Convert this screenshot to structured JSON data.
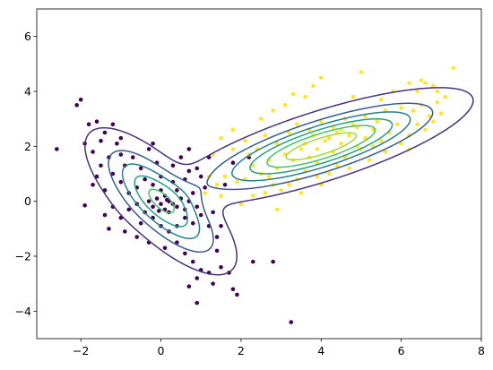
{
  "chart_data": {
    "type": "scatter",
    "title": "",
    "xlabel": "",
    "ylabel": "",
    "xlim": [
      -3.1,
      8
    ],
    "ylim": [
      -5,
      7
    ],
    "x_ticks": [
      -2,
      0,
      2,
      4,
      6,
      8
    ],
    "y_ticks": [
      -4,
      -2,
      0,
      2,
      4,
      6
    ],
    "x_tick_labels": [
      "−2",
      "0",
      "2",
      "4",
      "6",
      "8"
    ],
    "y_tick_labels": [
      "−4",
      "−2",
      "0",
      "2",
      "4",
      "6"
    ],
    "grid": false,
    "legend": "none",
    "colors": {
      "cluster_a": "#440154",
      "cluster_b": "#fde725",
      "contour_levels": [
        "#46327e",
        "#365c8d",
        "#277f8e",
        "#1fa187",
        "#4ac16d",
        "#a0da39"
      ]
    },
    "series": [
      {
        "color": "#440154",
        "points": [
          [
            -2.6,
            1.9
          ],
          [
            -2.1,
            3.5
          ],
          [
            -2.0,
            3.7
          ],
          [
            -1.8,
            2.8
          ],
          [
            -1.6,
            2.9
          ],
          [
            -1.4,
            2.5
          ],
          [
            -1.9,
            2.1
          ],
          [
            -1.7,
            1.8
          ],
          [
            -1.5,
            2.2
          ],
          [
            -1.2,
            2.8
          ],
          [
            -1.1,
            2.1
          ],
          [
            -1.0,
            2.3
          ],
          [
            -1.3,
            1.6
          ],
          [
            -1.5,
            1.3
          ],
          [
            -1.6,
            0.9
          ],
          [
            -1.7,
            0.6
          ],
          [
            -1.4,
            0.4
          ],
          [
            -1.2,
            1.0
          ],
          [
            -1.0,
            0.7
          ],
          [
            -0.9,
            1.3
          ],
          [
            -0.7,
            1.6
          ],
          [
            -0.5,
            1.2
          ],
          [
            -0.3,
            1.9
          ],
          [
            -0.2,
            2.1
          ],
          [
            -0.8,
            0.3
          ],
          [
            -0.6,
            0.5
          ],
          [
            -0.4,
            0.8
          ],
          [
            -0.2,
            0.6
          ],
          [
            0.0,
            0.4
          ],
          [
            0.1,
            0.2
          ],
          [
            0.2,
            0.0
          ],
          [
            0.3,
            -0.1
          ],
          [
            0.0,
            -0.1
          ],
          [
            -0.1,
            0.1
          ],
          [
            0.1,
            -0.3
          ],
          [
            0.2,
            -0.4
          ],
          [
            0.4,
            -0.2
          ],
          [
            0.5,
            0.1
          ],
          [
            0.6,
            -0.3
          ],
          [
            0.4,
            0.4
          ],
          [
            0.3,
            0.7
          ],
          [
            0.6,
            0.8
          ],
          [
            0.7,
            1.1
          ],
          [
            0.9,
            1.2
          ],
          [
            1.0,
            0.9
          ],
          [
            1.1,
            0.5
          ],
          [
            0.8,
            0.3
          ],
          [
            0.9,
            -0.2
          ],
          [
            1.0,
            -0.5
          ],
          [
            0.8,
            -0.8
          ],
          [
            0.6,
            -0.6
          ],
          [
            0.4,
            -0.9
          ],
          [
            0.2,
            -1.1
          ],
          [
            0.0,
            -0.9
          ],
          [
            -0.2,
            -0.6
          ],
          [
            -0.4,
            -0.4
          ],
          [
            -0.6,
            -0.1
          ],
          [
            -0.8,
            -0.3
          ],
          [
            -1.0,
            -0.6
          ],
          [
            -1.2,
            -0.2
          ],
          [
            -1.4,
            -0.5
          ],
          [
            -0.9,
            -1.1
          ],
          [
            -0.6,
            -1.3
          ],
          [
            -0.3,
            -1.5
          ],
          [
            0.1,
            -1.7
          ],
          [
            0.4,
            -1.5
          ],
          [
            0.6,
            -1.9
          ],
          [
            0.8,
            -2.2
          ],
          [
            1.0,
            -2.5
          ],
          [
            1.2,
            -2.6
          ],
          [
            0.9,
            -2.8
          ],
          [
            0.7,
            -3.1
          ],
          [
            0.9,
            -3.7
          ],
          [
            1.3,
            -3.0
          ],
          [
            1.5,
            -2.4
          ],
          [
            1.7,
            -2.6
          ],
          [
            1.8,
            -3.2
          ],
          [
            1.9,
            -3.4
          ],
          [
            2.3,
            -2.2
          ],
          [
            2.8,
            -2.2
          ],
          [
            3.25,
            -4.4
          ],
          [
            1.4,
            -1.3
          ],
          [
            1.5,
            -0.9
          ],
          [
            1.3,
            -0.4
          ],
          [
            1.6,
            0.6
          ],
          [
            1.8,
            1.4
          ],
          [
            2.2,
            1.6
          ],
          [
            0.5,
            1.6
          ],
          [
            0.7,
            1.9
          ],
          [
            -0.1,
            1.4
          ],
          [
            -1.9,
            -0.15
          ],
          [
            -1.3,
            -1.0
          ],
          [
            -0.3,
            0.0
          ],
          [
            0.0,
            0.9
          ],
          [
            0.3,
            1.3
          ],
          [
            1.2,
            1.6
          ],
          [
            -0.5,
            -0.8
          ],
          [
            0.7,
            0.0
          ],
          [
            1.2,
            -0.9
          ],
          [
            1.4,
            -1.8
          ],
          [
            -1.0,
            1.7
          ],
          [
            -0.2,
            -0.2
          ],
          [
            0.15,
            0.05
          ],
          [
            -0.05,
            -0.35
          ]
        ]
      },
      {
        "color": "#fde725",
        "points": [
          [
            7.3,
            4.85
          ],
          [
            5.0,
            4.7
          ],
          [
            6.5,
            4.4
          ],
          [
            6.6,
            4.3
          ],
          [
            6.8,
            4.2
          ],
          [
            6.2,
            4.3
          ],
          [
            5.8,
            4.0
          ],
          [
            5.5,
            3.7
          ],
          [
            4.8,
            3.8
          ],
          [
            4.0,
            4.5
          ],
          [
            3.8,
            4.2
          ],
          [
            3.6,
            3.8
          ],
          [
            3.3,
            3.9
          ],
          [
            3.1,
            3.5
          ],
          [
            2.8,
            3.3
          ],
          [
            2.5,
            3.0
          ],
          [
            6.0,
            3.4
          ],
          [
            6.3,
            3.3
          ],
          [
            6.5,
            3.5
          ],
          [
            6.9,
            3.6
          ],
          [
            7.0,
            3.2
          ],
          [
            6.8,
            2.9
          ],
          [
            6.6,
            2.6
          ],
          [
            6.4,
            2.8
          ],
          [
            6.2,
            2.4
          ],
          [
            6.0,
            2.1
          ],
          [
            6.2,
            1.9
          ],
          [
            5.7,
            2.5
          ],
          [
            5.5,
            2.2
          ],
          [
            5.3,
            2.6
          ],
          [
            5.1,
            2.3
          ],
          [
            4.9,
            2.0
          ],
          [
            4.7,
            2.4
          ],
          [
            4.5,
            2.1
          ],
          [
            4.3,
            1.8
          ],
          [
            4.1,
            2.2
          ],
          [
            3.9,
            1.9
          ],
          [
            3.7,
            1.6
          ],
          [
            3.5,
            1.9
          ],
          [
            3.3,
            1.5
          ],
          [
            3.1,
            1.7
          ],
          [
            2.9,
            1.2
          ],
          [
            2.7,
            1.5
          ],
          [
            2.5,
            1.0
          ],
          [
            2.3,
            1.3
          ],
          [
            2.1,
            0.8
          ],
          [
            1.9,
            0.7
          ],
          [
            1.6,
            0.9
          ],
          [
            1.4,
            0.6
          ],
          [
            1.2,
            0.9
          ],
          [
            1.3,
            1.7
          ],
          [
            1.5,
            2.3
          ],
          [
            1.8,
            2.6
          ],
          [
            2.1,
            2.2
          ],
          [
            2.4,
            1.9
          ],
          [
            2.6,
            2.4
          ],
          [
            2.9,
            2.1
          ],
          [
            3.2,
            2.5
          ],
          [
            3.4,
            2.8
          ],
          [
            3.7,
            2.6
          ],
          [
            4.0,
            2.9
          ],
          [
            4.3,
            2.7
          ],
          [
            4.6,
            3.0
          ],
          [
            4.8,
            2.8
          ],
          [
            5.1,
            3.1
          ],
          [
            5.4,
            2.9
          ],
          [
            4.4,
            1.3
          ],
          [
            4.2,
            1.0
          ],
          [
            3.9,
            0.9
          ],
          [
            3.6,
            1.1
          ],
          [
            3.4,
            0.8
          ],
          [
            3.2,
            0.6
          ],
          [
            3.0,
            0.4
          ],
          [
            2.8,
            0.6
          ],
          [
            2.6,
            0.3
          ],
          [
            2.3,
            0.2
          ],
          [
            2.0,
            -0.1
          ],
          [
            2.9,
            -0.3
          ],
          [
            3.5,
            0.3
          ],
          [
            4.0,
            0.6
          ],
          [
            4.6,
            1.6
          ],
          [
            5.0,
            1.9
          ],
          [
            5.2,
            1.5
          ],
          [
            5.6,
            1.8
          ],
          [
            4.4,
            2.5
          ],
          [
            4.2,
            2.3
          ],
          [
            3.8,
            2.4
          ],
          [
            4.5,
            2.6
          ],
          [
            4.9,
            2.7
          ],
          [
            5.3,
            2.0
          ],
          [
            3.6,
            2.1
          ],
          [
            3.9,
            1.4
          ],
          [
            4.7,
            1.2
          ],
          [
            5.6,
            3.3
          ],
          [
            5.9,
            2.8
          ],
          [
            6.7,
            3.1
          ],
          [
            7.1,
            3.8
          ],
          [
            6.9,
            4.0
          ],
          [
            6.4,
            4.0
          ],
          [
            2.2,
            1.7
          ],
          [
            1.8,
            1.9
          ],
          [
            1.1,
            0.3
          ],
          [
            1.5,
            0.2
          ],
          [
            2.7,
            0.9
          ]
        ]
      }
    ]
  }
}
